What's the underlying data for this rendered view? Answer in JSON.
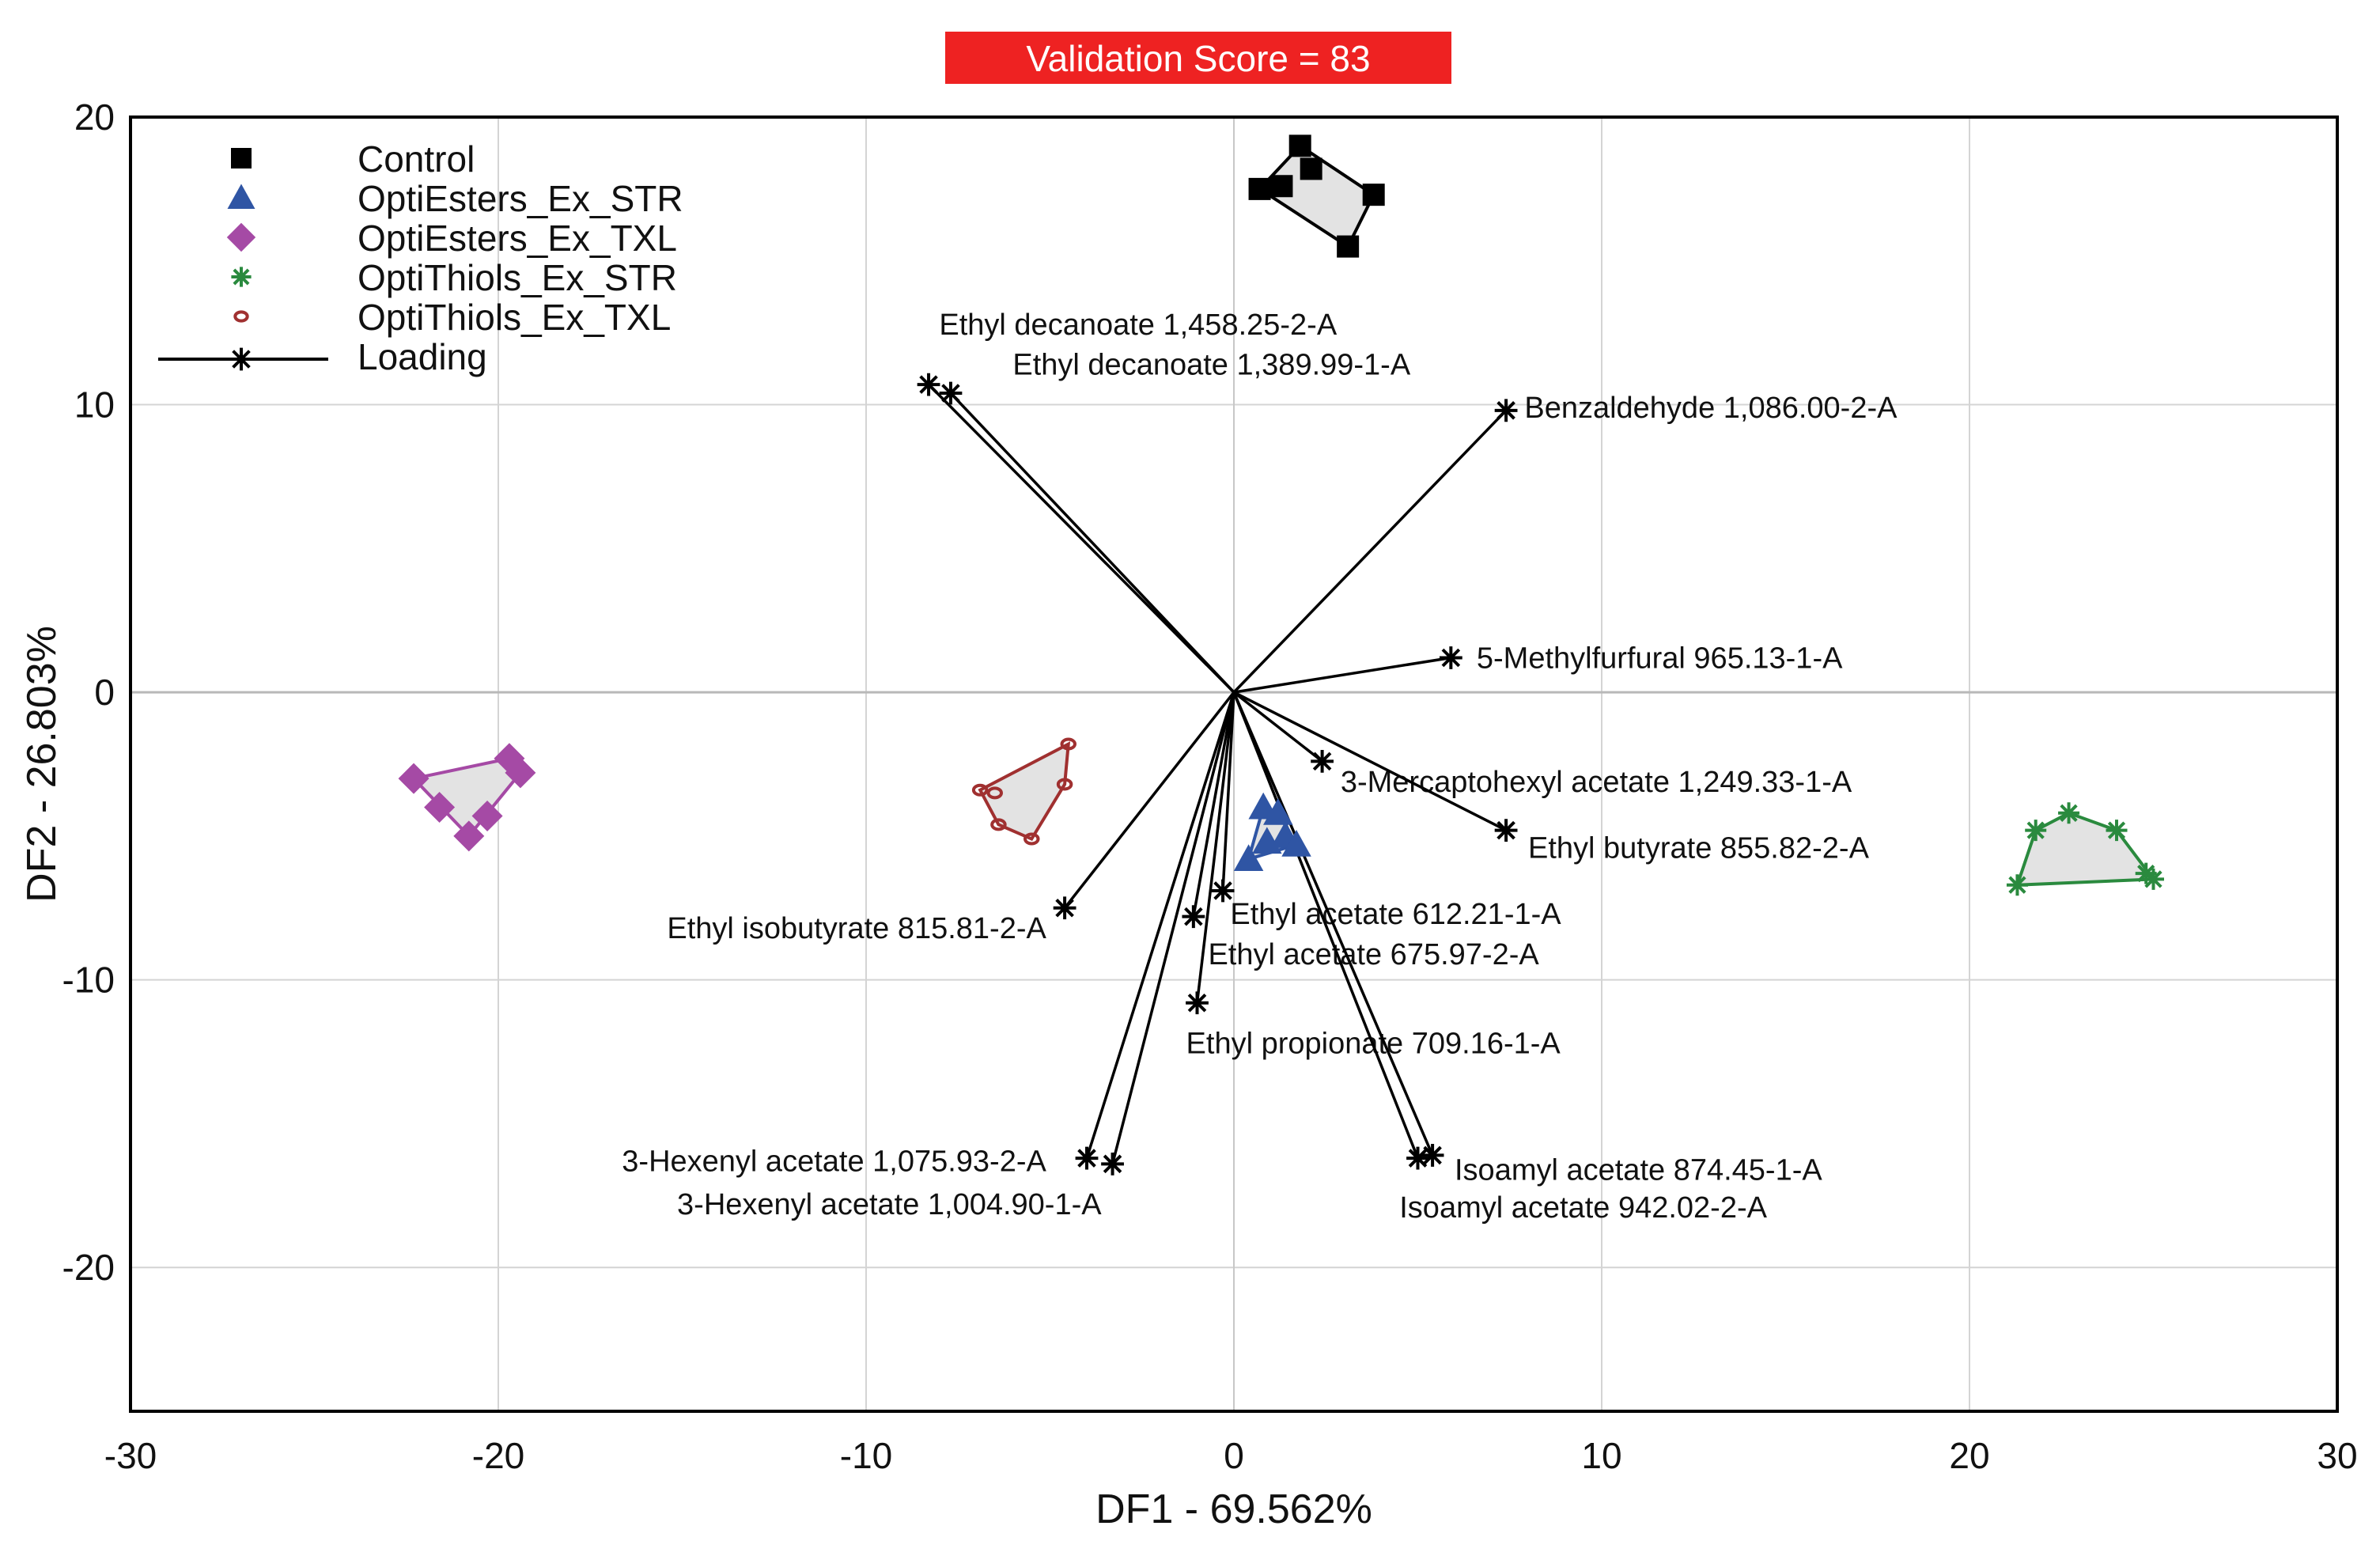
{
  "chart_data": {
    "type": "scatter",
    "badge": "Validation Score = 83",
    "badge_color": "#ee2222",
    "xlabel": "DF1 - 69.562%",
    "ylabel": "DF2 - 26.803%",
    "xlim": [
      -30,
      30
    ],
    "ylim": [
      -25,
      20
    ],
    "xticks": [
      -30,
      -20,
      -10,
      0,
      10,
      20,
      30
    ],
    "yticks": [
      20,
      10,
      0,
      -10,
      -20
    ],
    "grid": true,
    "legend_position": "top-left",
    "legend": [
      {
        "name": "Control",
        "marker": "square",
        "color": "#000000"
      },
      {
        "name": "OptiEsters_Ex_STR",
        "marker": "triangle",
        "color": "#2f55a4"
      },
      {
        "name": "OptiEsters_Ex_TXL",
        "marker": "diamond",
        "color": "#a54aa5"
      },
      {
        "name": "OptiThiols_Ex_STR",
        "marker": "asterisk",
        "color": "#2a8a3e"
      },
      {
        "name": "OptiThiols_Ex_TXL",
        "marker": "ring",
        "color": "#a03030"
      },
      {
        "name": "Loading",
        "marker": "asterisk-line",
        "color": "#000000"
      }
    ],
    "groups": [
      {
        "name": "Control",
        "marker": "square",
        "color": "#000000",
        "points": [
          [
            1.8,
            19.0
          ],
          [
            0.7,
            17.5
          ],
          [
            1.3,
            17.6
          ],
          [
            2.1,
            18.2
          ],
          [
            3.8,
            17.3
          ],
          [
            3.1,
            15.5
          ]
        ],
        "hull": [
          [
            1.8,
            19.0
          ],
          [
            3.8,
            17.3
          ],
          [
            3.1,
            15.5
          ],
          [
            0.7,
            17.5
          ]
        ]
      },
      {
        "name": "OptiEsters_Ex_STR",
        "marker": "triangle",
        "color": "#2f55a4",
        "points": [
          [
            0.8,
            -4.0
          ],
          [
            1.2,
            -4.2
          ],
          [
            1.4,
            -5.0
          ],
          [
            0.9,
            -5.2
          ],
          [
            1.7,
            -5.3
          ],
          [
            0.4,
            -5.8
          ]
        ],
        "hull": [
          [
            0.8,
            -4.0
          ],
          [
            1.2,
            -4.2
          ],
          [
            1.7,
            -5.3
          ],
          [
            0.4,
            -5.8
          ]
        ]
      },
      {
        "name": "OptiEsters_Ex_TXL",
        "marker": "diamond",
        "color": "#a54aa5",
        "points": [
          [
            -22.3,
            -3.0
          ],
          [
            -19.7,
            -2.3
          ],
          [
            -19.4,
            -2.8
          ],
          [
            -21.6,
            -4.0
          ],
          [
            -20.3,
            -4.3
          ],
          [
            -20.8,
            -5.0
          ]
        ],
        "hull": [
          [
            -22.3,
            -3.0
          ],
          [
            -19.7,
            -2.3
          ],
          [
            -19.4,
            -2.8
          ],
          [
            -20.8,
            -5.0
          ]
        ]
      },
      {
        "name": "OptiThiols_Ex_STR",
        "marker": "asterisk",
        "color": "#2a8a3e",
        "points": [
          [
            21.8,
            -4.8
          ],
          [
            22.7,
            -4.2
          ],
          [
            24.0,
            -4.8
          ],
          [
            24.8,
            -6.3
          ],
          [
            25.0,
            -6.5
          ],
          [
            21.3,
            -6.7
          ]
        ],
        "hull": [
          [
            21.8,
            -4.8
          ],
          [
            22.7,
            -4.2
          ],
          [
            24.0,
            -4.8
          ],
          [
            25.0,
            -6.5
          ],
          [
            21.3,
            -6.7
          ]
        ]
      },
      {
        "name": "OptiThiols_Ex_TXL",
        "marker": "ring",
        "color": "#a03030",
        "points": [
          [
            -4.5,
            -1.8
          ],
          [
            -6.9,
            -3.4
          ],
          [
            -6.5,
            -3.5
          ],
          [
            -4.6,
            -3.2
          ],
          [
            -6.4,
            -4.6
          ],
          [
            -5.5,
            -5.1
          ]
        ],
        "hull": [
          [
            -4.5,
            -1.8
          ],
          [
            -4.6,
            -3.2
          ],
          [
            -5.5,
            -5.1
          ],
          [
            -6.4,
            -4.6
          ],
          [
            -6.9,
            -3.4
          ]
        ]
      }
    ],
    "loadings": [
      {
        "label": "Ethyl decanoate 1,458.25-2-A",
        "x": -8.3,
        "y": 10.7,
        "anchor": "end",
        "lx": 2.8,
        "ly": 12.8
      },
      {
        "label": "Ethyl decanoate 1,389.99-1-A",
        "x": -7.7,
        "y": 10.4,
        "anchor": "end",
        "lx": 4.8,
        "ly": 11.4
      },
      {
        "label": "Benzaldehyde 1,086.00-2-A",
        "x": 7.4,
        "y": 9.8,
        "anchor": "start",
        "lx": 7.9,
        "ly": 9.9
      },
      {
        "label": "5-Methylfurfural 965.13-1-A",
        "x": 5.9,
        "y": 1.2,
        "anchor": "start",
        "lx": 6.6,
        "ly": 1.2
      },
      {
        "label": "3-Mercaptohexyl acetate 1,249.33-1-A",
        "x": 2.4,
        "y": -2.4,
        "anchor": "start",
        "lx": 2.9,
        "ly": -3.1
      },
      {
        "label": "Ethyl butyrate 855.82-2-A",
        "x": 7.4,
        "y": -4.8,
        "anchor": "start",
        "lx": 8.0,
        "ly": -5.4
      },
      {
        "label": "Ethyl isobutyrate 815.81-2-A",
        "x": -4.6,
        "y": -7.5,
        "anchor": "end",
        "lx": -5.1,
        "ly": -8.2
      },
      {
        "label": "Ethyl acetate 612.21-1-A",
        "x": -0.3,
        "y": -6.9,
        "anchor": "start",
        "lx": -0.1,
        "ly": -7.7
      },
      {
        "label": "Ethyl acetate 675.97-2-A",
        "x": -1.1,
        "y": -7.8,
        "anchor": "start",
        "lx": -0.7,
        "ly": -9.1
      },
      {
        "label": "Ethyl propionate 709.16-1-A",
        "x": -1.0,
        "y": -10.8,
        "anchor": "start",
        "lx": -1.3,
        "ly": -12.2
      },
      {
        "label": "3-Hexenyl acetate 1,075.93-2-A",
        "x": -4.0,
        "y": -16.2,
        "anchor": "end",
        "lx": -5.1,
        "ly": -16.3
      },
      {
        "label": "3-Hexenyl acetate 1,004.90-1-A",
        "x": -3.3,
        "y": -16.4,
        "anchor": "end",
        "lx": -3.6,
        "ly": -17.8
      },
      {
        "label": "Isoamyl acetate 874.45-1-A",
        "x": 5.4,
        "y": -16.1,
        "anchor": "start",
        "lx": 6.0,
        "ly": -16.6
      },
      {
        "label": "Isoamyl acetate 942.02-2-A",
        "x": 5.0,
        "y": -16.2,
        "anchor": "start",
        "lx": 4.5,
        "ly": -17.9
      }
    ]
  }
}
